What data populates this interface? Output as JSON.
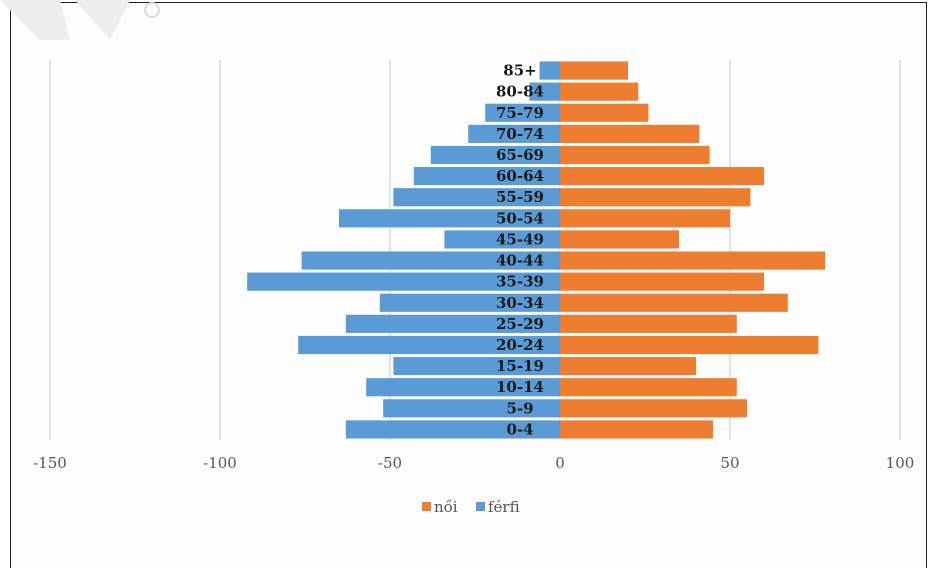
{
  "chart_data": {
    "type": "bar",
    "orientation": "horizontal",
    "layout": "population-pyramid",
    "categories": [
      "0-4",
      "5-9",
      "10-14",
      "15-19",
      "20-24",
      "25-29",
      "30-34",
      "35-39",
      "40-44",
      "45-49",
      "50-54",
      "55-59",
      "60-64",
      "65-69",
      "70-74",
      "75-79",
      "80-84",
      "85+"
    ],
    "series": [
      {
        "name": "férfi",
        "color": "#5B9BD5",
        "values": [
          -63,
          -52,
          -57,
          -49,
          -77,
          -63,
          -53,
          -92,
          -76,
          -34,
          -65,
          -49,
          -43,
          -38,
          -27,
          -22,
          -9,
          -6
        ]
      },
      {
        "name": "női",
        "color": "#ED7D31",
        "values": [
          45,
          55,
          52,
          40,
          76,
          52,
          67,
          60,
          78,
          35,
          50,
          56,
          60,
          44,
          41,
          26,
          23,
          20
        ]
      }
    ],
    "x_ticks": [
      "-150",
      "-100",
      "-50",
      "0",
      "50",
      "100"
    ],
    "xlim": [
      -150,
      100
    ],
    "grid": "vertical",
    "legend_position": "bottom",
    "legend": [
      {
        "label": "női",
        "color": "#ED7D31"
      },
      {
        "label": "férfi",
        "color": "#5B9BD5"
      }
    ],
    "title": "",
    "xlabel": "",
    "ylabel": ""
  }
}
